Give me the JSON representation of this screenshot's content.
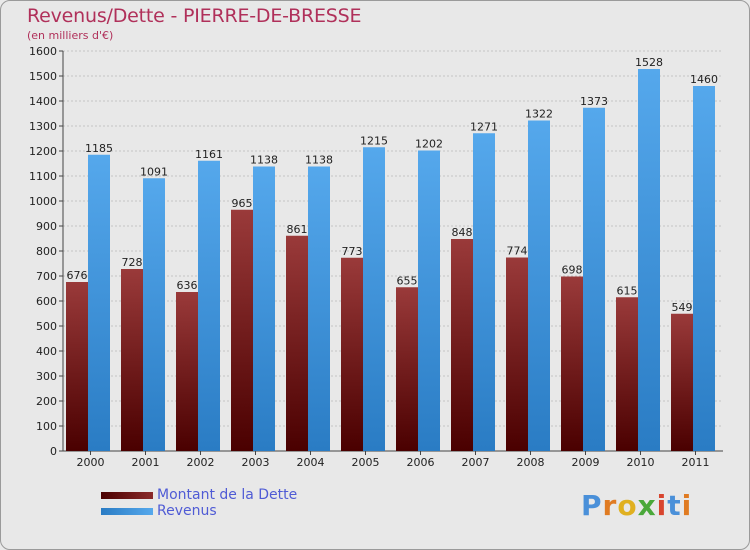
{
  "title": "Revenus/Dette - PIERRE-DE-BRESSE",
  "subtitle": "(en milliers d'€)",
  "logo": {
    "text": "Proxiti",
    "letters": [
      "P",
      "r",
      "o",
      "x",
      "i",
      "t",
      "i"
    ],
    "colors": [
      "#4a90d9",
      "#e07b22",
      "#e0b020",
      "#4aa83a",
      "#d8452e",
      "#4a90d9",
      "#e07b22"
    ]
  },
  "chart_data": {
    "type": "bar",
    "categories": [
      "2000",
      "2001",
      "2002",
      "2003",
      "2004",
      "2005",
      "2006",
      "2007",
      "2008",
      "2009",
      "2010",
      "2011"
    ],
    "series": [
      {
        "name": "Montant de la Dette",
        "values": [
          676,
          728,
          636,
          965,
          861,
          773,
          655,
          848,
          774,
          698,
          615,
          549
        ],
        "color": "#7a1a1a"
      },
      {
        "name": "Revenus",
        "values": [
          1185,
          1091,
          1161,
          1138,
          1138,
          1215,
          1202,
          1271,
          1322,
          1373,
          1528,
          1460
        ],
        "color": "#3a8fd6"
      }
    ],
    "ylim": [
      0,
      1600
    ],
    "yticks": [
      0,
      100,
      200,
      300,
      400,
      500,
      600,
      700,
      800,
      900,
      1000,
      1100,
      1200,
      1300,
      1400,
      1500,
      1600
    ],
    "grid": true,
    "legend": "bottom-left"
  }
}
